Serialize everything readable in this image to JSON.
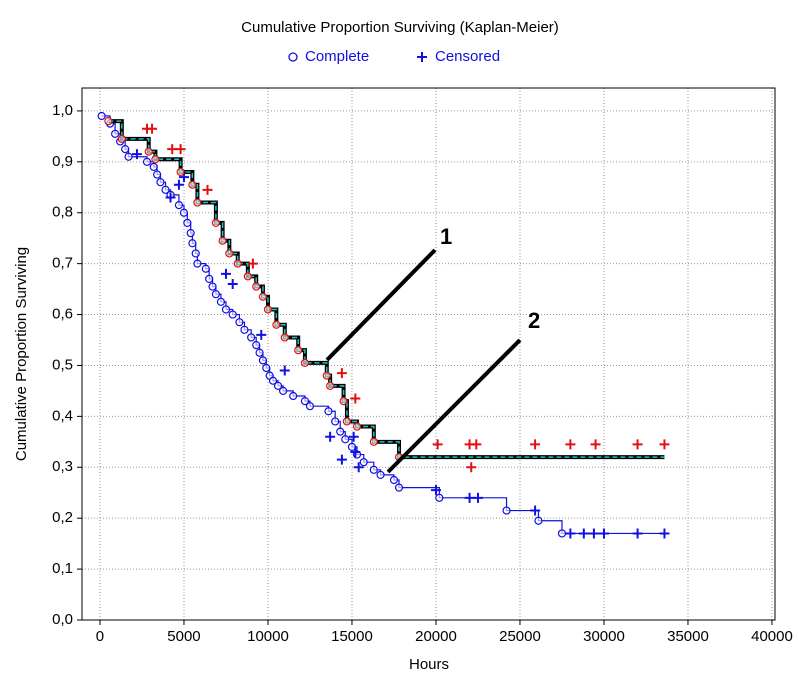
{
  "chart_data": {
    "type": "step",
    "title": "Cumulative Proportion Surviving (Kaplan-Meier)",
    "legend": [
      {
        "name": "Complete",
        "color": "#1010e0"
      },
      {
        "name": "Censored",
        "color": "#1010e0"
      }
    ],
    "xlabel": "Hours",
    "ylabel": "Cumulative Proportion Surviving",
    "xlim": [
      -1070,
      40180
    ],
    "ylim": [
      0,
      1.045
    ],
    "xticks": [
      0,
      5000,
      10000,
      15000,
      20000,
      25000,
      30000,
      35000,
      40000
    ],
    "yticks": [
      {
        "value": 0,
        "label": "0,0"
      },
      {
        "value": 0.1,
        "label": "0,1"
      },
      {
        "value": 0.2,
        "label": "0,2"
      },
      {
        "value": 0.3,
        "label": "0,3"
      },
      {
        "value": 0.4,
        "label": "0,4"
      },
      {
        "value": 0.5,
        "label": "0,5"
      },
      {
        "value": 0.6,
        "label": "0,6"
      },
      {
        "value": 0.7,
        "label": "0,7"
      },
      {
        "value": 0.8,
        "label": "0,8"
      },
      {
        "value": 0.9,
        "label": "0,9"
      },
      {
        "value": 1,
        "label": "1,0"
      }
    ],
    "grid": true,
    "curves": [
      {
        "label": "1",
        "color": "#000000",
        "overlay_color": "#20c0c0",
        "marker_color": "#e01010",
        "complete": {
          "x": [
            500,
            1300,
            2900,
            3300,
            4800,
            5500,
            5800,
            6900,
            7300,
            7700,
            8200,
            8800,
            9300,
            9700,
            10000,
            10500,
            11000,
            11800,
            12200,
            13500,
            13700,
            14500,
            14700,
            15300,
            16300,
            17800
          ],
          "y": [
            0.98,
            0.945,
            0.92,
            0.905,
            0.88,
            0.855,
            0.82,
            0.78,
            0.745,
            0.72,
            0.7,
            0.675,
            0.655,
            0.635,
            0.61,
            0.58,
            0.555,
            0.53,
            0.505,
            0.48,
            0.46,
            0.43,
            0.39,
            0.38,
            0.35,
            0.32
          ]
        },
        "censored": {
          "x": [
            2800,
            3100,
            4300,
            4800,
            6400,
            9100,
            14400,
            15200,
            20100,
            22000,
            22400,
            22100,
            25900,
            28000,
            29500,
            32000,
            33600
          ],
          "y": [
            0.965,
            0.965,
            0.925,
            0.925,
            0.845,
            0.7,
            0.485,
            0.435,
            0.345,
            0.345,
            0.345,
            0.3,
            0.345,
            0.345,
            0.345,
            0.345,
            0.345
          ]
        }
      },
      {
        "label": "2",
        "color": "#1010e0",
        "marker_color": "#1010e0",
        "complete": {
          "x": [
            100,
            600,
            900,
            1200,
            1500,
            1700,
            2800,
            3200,
            3400,
            3600,
            3900,
            4200,
            4700,
            5000,
            5200,
            5400,
            5500,
            5700,
            5800,
            6300,
            6500,
            6700,
            6900,
            7200,
            7500,
            7900,
            8300,
            8600,
            9000,
            9300,
            9500,
            9700,
            9900,
            10100,
            10300,
            10600,
            10900,
            11500,
            12200,
            12500,
            13600,
            14000,
            14300,
            14600,
            15000,
            15300,
            15700,
            16300,
            16700,
            17500,
            17800,
            20200,
            24200,
            26100,
            27500
          ],
          "y": [
            0.99,
            0.975,
            0.955,
            0.94,
            0.925,
            0.91,
            0.9,
            0.89,
            0.875,
            0.86,
            0.845,
            0.835,
            0.815,
            0.8,
            0.78,
            0.76,
            0.74,
            0.72,
            0.7,
            0.69,
            0.67,
            0.655,
            0.64,
            0.625,
            0.61,
            0.6,
            0.585,
            0.57,
            0.555,
            0.54,
            0.525,
            0.51,
            0.495,
            0.48,
            0.47,
            0.46,
            0.45,
            0.44,
            0.43,
            0.42,
            0.41,
            0.39,
            0.37,
            0.355,
            0.34,
            0.325,
            0.31,
            0.295,
            0.285,
            0.275,
            0.26,
            0.24,
            0.215,
            0.195,
            0.17
          ]
        },
        "censored": {
          "x": [
            2200,
            4200,
            4700,
            5000,
            7500,
            7900,
            9600,
            11000,
            13700,
            14400,
            15100,
            15200,
            15400,
            20000,
            22000,
            22500,
            25900,
            28000,
            28800,
            29400,
            30000,
            32000,
            33600
          ],
          "y": [
            0.915,
            0.83,
            0.855,
            0.87,
            0.68,
            0.66,
            0.56,
            0.49,
            0.36,
            0.315,
            0.36,
            0.33,
            0.3,
            0.255,
            0.24,
            0.24,
            0.215,
            0.17,
            0.17,
            0.17,
            0.17,
            0.17,
            0.17
          ]
        }
      }
    ]
  }
}
